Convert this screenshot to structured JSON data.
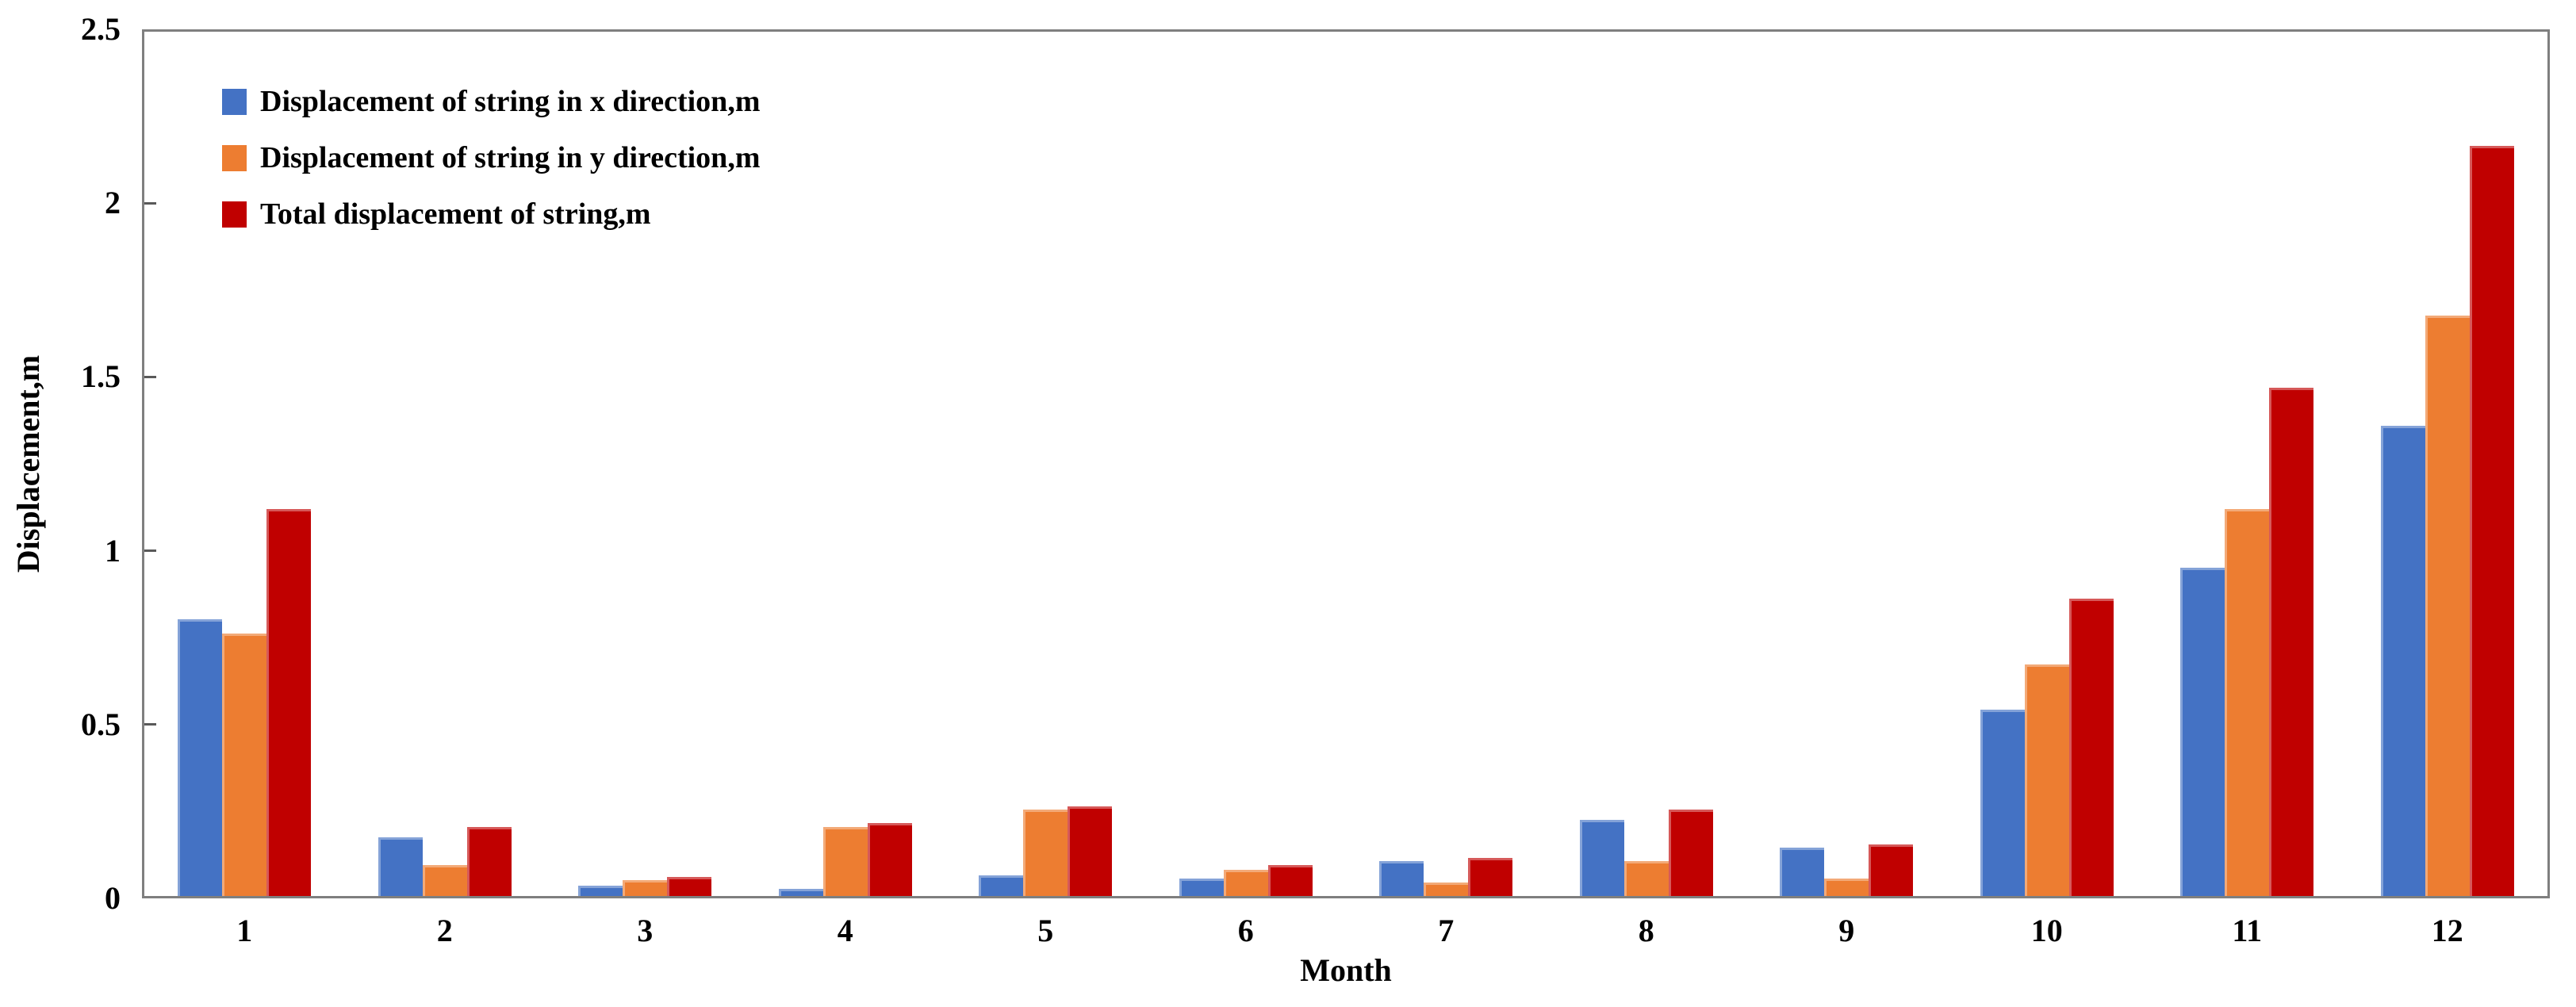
{
  "chart_data": {
    "type": "bar",
    "title": "",
    "xlabel": "Month",
    "ylabel": "Displacement,m",
    "categories": [
      "1",
      "2",
      "3",
      "4",
      "5",
      "6",
      "7",
      "8",
      "9",
      "10",
      "11",
      "12"
    ],
    "series": [
      {
        "name": "Displacement of string in x direction,m",
        "color": "#4472C4",
        "values": [
          0.8,
          0.17,
          0.03,
          0.02,
          0.06,
          0.05,
          0.1,
          0.22,
          0.14,
          0.54,
          0.95,
          1.36
        ]
      },
      {
        "name": "Displacement of string in y direction,m",
        "color": "#ED7D31",
        "values": [
          0.76,
          0.09,
          0.045,
          0.2,
          0.25,
          0.075,
          0.04,
          0.1,
          0.05,
          0.67,
          1.12,
          1.68
        ]
      },
      {
        "name": "Total displacement of string,m",
        "color": "#C00000",
        "values": [
          1.12,
          0.2,
          0.055,
          0.21,
          0.26,
          0.09,
          0.11,
          0.25,
          0.15,
          0.86,
          1.47,
          2.17
        ]
      }
    ],
    "ylim": [
      0,
      2.5
    ],
    "yticks": [
      0,
      0.5,
      1,
      1.5,
      2,
      2.5
    ],
    "grid": false,
    "legend_position": "top-left-inside",
    "frame_color": "#7F7F7F",
    "tick_color": "#595959"
  }
}
